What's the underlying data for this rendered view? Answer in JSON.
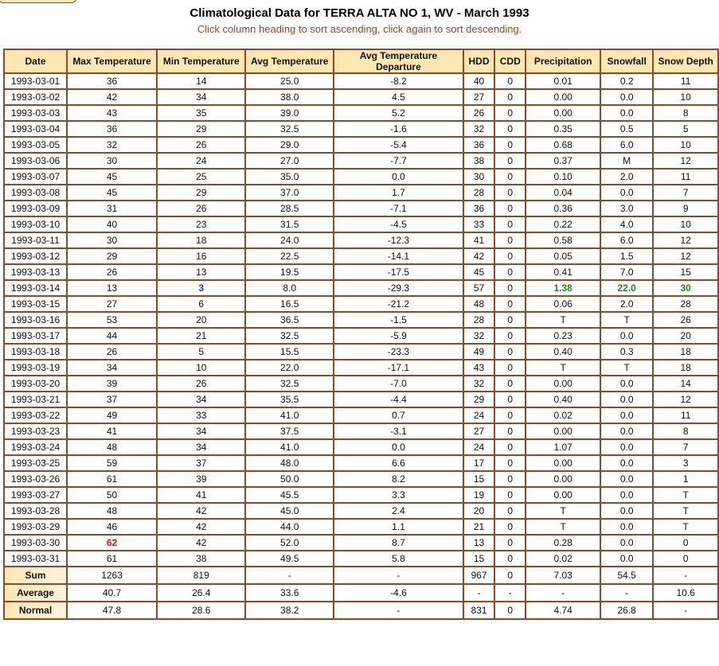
{
  "title": "Climatological Data for TERRA ALTA NO 1, WV - March 1993",
  "subtitle": "Click column heading to sort ascending, click again to sort descending.",
  "columns": [
    "Date",
    "Max Temperature",
    "Min Temperature",
    "Avg Temperature",
    "Avg Temperature Departure",
    "HDD",
    "CDD",
    "Precipitation",
    "Snowfall",
    "Snow Depth"
  ],
  "rows": [
    [
      "1993-03-01",
      "36",
      "14",
      "25.0",
      "-8.2",
      "40",
      "0",
      "0.01",
      "0.2",
      "11"
    ],
    [
      "1993-03-02",
      "42",
      "34",
      "38.0",
      "4.5",
      "27",
      "0",
      "0.00",
      "0.0",
      "10"
    ],
    [
      "1993-03-03",
      "43",
      "35",
      "39.0",
      "5.2",
      "26",
      "0",
      "0.00",
      "0.0",
      "8"
    ],
    [
      "1993-03-04",
      "36",
      "29",
      "32.5",
      "-1.6",
      "32",
      "0",
      "0.35",
      "0.5",
      "5"
    ],
    [
      "1993-03-05",
      "32",
      "26",
      "29.0",
      "-5.4",
      "36",
      "0",
      "0.68",
      "6.0",
      "10"
    ],
    [
      "1993-03-06",
      "30",
      "24",
      "27.0",
      "-7.7",
      "38",
      "0",
      "0.37",
      "M",
      "12"
    ],
    [
      "1993-03-07",
      "45",
      "25",
      "35.0",
      "0.0",
      "30",
      "0",
      "0.10",
      "2.0",
      "11"
    ],
    [
      "1993-03-08",
      "45",
      "29",
      "37.0",
      "1.7",
      "28",
      "0",
      "0.04",
      "0.0",
      "7"
    ],
    [
      "1993-03-09",
      "31",
      "26",
      "28.5",
      "-7.1",
      "36",
      "0",
      "0.36",
      "3.0",
      "9"
    ],
    [
      "1993-03-10",
      "40",
      "23",
      "31.5",
      "-4.5",
      "33",
      "0",
      "0.22",
      "4.0",
      "10"
    ],
    [
      "1993-03-11",
      "30",
      "18",
      "24.0",
      "-12.3",
      "41",
      "0",
      "0.58",
      "6.0",
      "12"
    ],
    [
      "1993-03-12",
      "29",
      "16",
      "22.5",
      "-14.1",
      "42",
      "0",
      "0.05",
      "1.5",
      "12"
    ],
    [
      "1993-03-13",
      "26",
      "13",
      "19.5",
      "-17.5",
      "45",
      "0",
      "0.41",
      "7.0",
      "15"
    ],
    [
      "1993-03-14",
      "13",
      "3",
      "8.0",
      "-29.3",
      "57",
      "0",
      "1.38",
      "22.0",
      "30"
    ],
    [
      "1993-03-15",
      "27",
      "6",
      "16.5",
      "-21.2",
      "48",
      "0",
      "0.06",
      "2.0",
      "28"
    ],
    [
      "1993-03-16",
      "53",
      "20",
      "36.5",
      "-1.5",
      "28",
      "0",
      "T",
      "T",
      "26"
    ],
    [
      "1993-03-17",
      "44",
      "21",
      "32.5",
      "-5.9",
      "32",
      "0",
      "0.23",
      "0.0",
      "20"
    ],
    [
      "1993-03-18",
      "26",
      "5",
      "15.5",
      "-23.3",
      "49",
      "0",
      "0.40",
      "0.3",
      "18"
    ],
    [
      "1993-03-19",
      "34",
      "10",
      "22.0",
      "-17.1",
      "43",
      "0",
      "T",
      "T",
      "18"
    ],
    [
      "1993-03-20",
      "39",
      "26",
      "32.5",
      "-7.0",
      "32",
      "0",
      "0.00",
      "0.0",
      "14"
    ],
    [
      "1993-03-21",
      "37",
      "34",
      "35.5",
      "-4.4",
      "29",
      "0",
      "0.40",
      "0.0",
      "12"
    ],
    [
      "1993-03-22",
      "49",
      "33",
      "41.0",
      "0.7",
      "24",
      "0",
      "0.02",
      "0.0",
      "11"
    ],
    [
      "1993-03-23",
      "41",
      "34",
      "37.5",
      "-3.1",
      "27",
      "0",
      "0.00",
      "0.0",
      "8"
    ],
    [
      "1993-03-24",
      "48",
      "34",
      "41.0",
      "0.0",
      "24",
      "0",
      "1.07",
      "0.0",
      "7"
    ],
    [
      "1993-03-25",
      "59",
      "37",
      "48.0",
      "6.6",
      "17",
      "0",
      "0.00",
      "0.0",
      "3"
    ],
    [
      "1993-03-26",
      "61",
      "39",
      "50.0",
      "8.2",
      "15",
      "0",
      "0.00",
      "0.0",
      "1"
    ],
    [
      "1993-03-27",
      "50",
      "41",
      "45.5",
      "3.3",
      "19",
      "0",
      "0.00",
      "0.0",
      "T"
    ],
    [
      "1993-03-28",
      "48",
      "42",
      "45.0",
      "2.4",
      "20",
      "0",
      "T",
      "0.0",
      "T"
    ],
    [
      "1993-03-29",
      "46",
      "42",
      "44.0",
      "1.1",
      "21",
      "0",
      "T",
      "0.0",
      "T"
    ],
    [
      "1993-03-30",
      "62",
      "42",
      "52.0",
      "8.7",
      "13",
      "0",
      "0.28",
      "0.0",
      "0"
    ],
    [
      "1993-03-31",
      "61",
      "38",
      "49.5",
      "5.8",
      "15",
      "0",
      "0.02",
      "0.0",
      "0"
    ]
  ],
  "summary": [
    [
      "Sum",
      "1263",
      "819",
      "-",
      "-",
      "967",
      "0",
      "7.03",
      "54.5",
      "-"
    ],
    [
      "Average",
      "40.7",
      "26.4",
      "33.6",
      "-4.6",
      "-",
      "-",
      "-",
      "-",
      "10.6"
    ],
    [
      "Normal",
      "47.8",
      "28.6",
      "38.2",
      "-",
      "831",
      "0",
      "4.74",
      "26.8",
      "-"
    ]
  ],
  "highlights": {
    "13-2": "blue",
    "29-1": "red",
    "13-7": "green",
    "13-8": "green",
    "13-9": "green"
  },
  "colors": {
    "border": "#8b4a2b",
    "header_bg": "#fde8b4",
    "min_record": "#1a35c4",
    "max_record": "#e01010",
    "precip_record": "#1b8a1b"
  }
}
